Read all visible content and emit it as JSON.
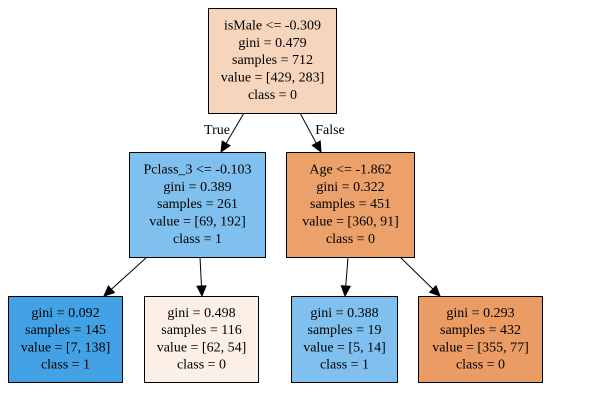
{
  "tree": {
    "nodes": [
      {
        "id": "root",
        "lines": [
          "isMale <= -0.309",
          "gini = 0.479",
          "samples = 712",
          "value = [429, 283]",
          "class = 0"
        ],
        "fill": "#f6d5bd"
      },
      {
        "id": "left",
        "lines": [
          "Pclass_3 <= -0.103",
          "gini = 0.389",
          "samples = 261",
          "value = [69, 192]",
          "class = 1"
        ],
        "fill": "#80c0ee"
      },
      {
        "id": "right",
        "lines": [
          "Age <= -1.862",
          "gini = 0.322",
          "samples = 451",
          "value = [360, 91]",
          "class = 0"
        ],
        "fill": "#eca16b"
      },
      {
        "id": "left-left",
        "lines": [
          "gini = 0.092",
          "samples = 145",
          "value = [7, 138]",
          "class = 1"
        ],
        "fill": "#43a2e6"
      },
      {
        "id": "left-right",
        "lines": [
          "gini = 0.498",
          "samples = 116",
          "value = [62, 54]",
          "class = 0"
        ],
        "fill": "#fcefe6"
      },
      {
        "id": "right-left",
        "lines": [
          "gini = 0.388",
          "samples = 19",
          "value = [5, 14]",
          "class = 1"
        ],
        "fill": "#80c0ee"
      },
      {
        "id": "right-right",
        "lines": [
          "gini = 0.293",
          "samples = 432",
          "value = [355, 77]",
          "class = 0"
        ],
        "fill": "#eb9c64"
      }
    ],
    "edges": [
      {
        "from": "root",
        "to": "left",
        "label": "True"
      },
      {
        "from": "root",
        "to": "right",
        "label": "False"
      },
      {
        "from": "left",
        "to": "left-left",
        "label": ""
      },
      {
        "from": "left",
        "to": "left-right",
        "label": ""
      },
      {
        "from": "right",
        "to": "right-left",
        "label": ""
      },
      {
        "from": "right",
        "to": "right-right",
        "label": ""
      }
    ]
  }
}
